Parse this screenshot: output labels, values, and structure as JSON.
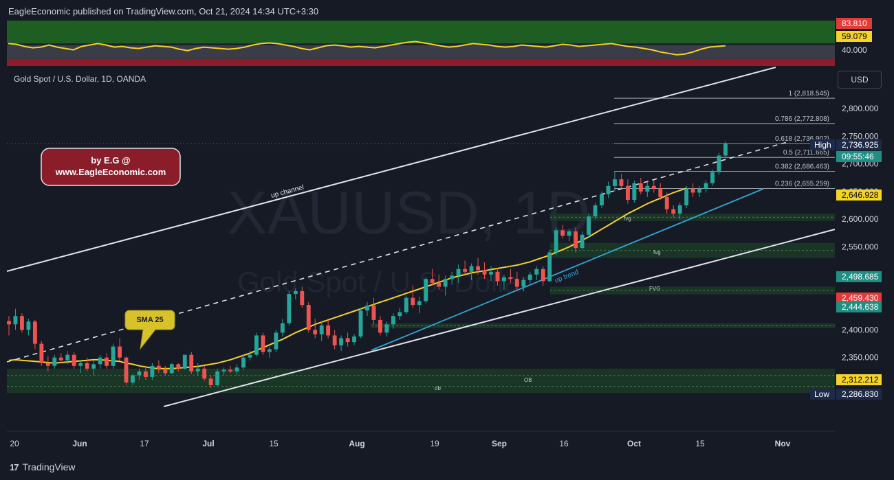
{
  "header": {
    "text": "EagleEconomic published on TradingView.com, Oct 21, 2024 14:34 UTC+3:30"
  },
  "symbol_title": "Gold Spot / U.S. Dollar, 1D, OANDA",
  "currency": "USD",
  "footer": {
    "brand": "TradingView"
  },
  "colors": {
    "background": "#161a25",
    "up": "#26a69a",
    "down": "#ef5350",
    "sma": "#f5d327",
    "trend": "#2ea8d6",
    "channel": "#e0e3eb"
  },
  "chart_data": [
    {
      "type": "line",
      "name": "oscillator-pane",
      "y_ticks": [
        "83.810",
        "59.079",
        "40.000"
      ],
      "levels": {
        "upper": 83.81,
        "current": 59.079,
        "lower": 40.0
      },
      "ylim": [
        30,
        95
      ],
      "values": [
        62,
        61,
        58,
        56,
        57,
        60,
        57,
        55,
        53,
        58,
        60,
        62,
        60,
        57,
        58,
        56,
        55,
        57,
        59,
        58,
        57,
        54,
        52,
        55,
        57,
        56,
        55,
        54,
        55,
        57,
        60,
        62,
        63,
        62,
        60,
        58,
        55,
        53,
        56,
        59,
        60,
        59,
        57,
        58,
        57,
        56,
        58,
        60,
        62,
        64,
        65,
        63,
        61,
        59,
        57,
        58,
        60,
        62,
        61,
        60,
        58,
        57,
        58,
        60,
        59,
        58,
        57,
        59,
        61,
        60,
        58,
        59,
        60,
        61,
        62,
        60,
        58,
        57,
        55,
        53,
        50,
        48,
        46,
        47,
        50,
        54,
        57,
        58,
        59
      ]
    },
    {
      "type": "candlestick",
      "title": "Gold Spot / U.S. Dollar, 1D, OANDA",
      "watermark": [
        "XAUUSD, 1D",
        "Gold Spot / U.S. Dollar"
      ],
      "y_ticks": [
        "2,800.000",
        "2,750.000",
        "2,700.000",
        "2,650.000",
        "2,600.000",
        "2,550.000",
        "2,400.000",
        "2,350.000"
      ],
      "x_ticks": [
        "20",
        "Jun",
        "17",
        "Jul",
        "15",
        "Aug",
        "19",
        "Sep",
        "16",
        "Oct",
        "15",
        "Nov"
      ],
      "ylim": [
        2250,
        2840
      ],
      "price_labels": [
        {
          "text": "2,736.925",
          "tag": "High",
          "value": 2736.925,
          "color": "#1e2a4a"
        },
        {
          "text": "09:55:46",
          "value": 2711,
          "color": "#1f8f84"
        },
        {
          "text": "2,646.928",
          "value": 2646.928,
          "color": "#f5d327"
        },
        {
          "text": "2,498.685",
          "value": 2498.685,
          "color": "#1f8f84"
        },
        {
          "text": "2,459.430",
          "value": 2459.43,
          "color": "#e53935"
        },
        {
          "text": "2,444.638",
          "value": 2444.638,
          "color": "#1f8f84"
        },
        {
          "text": "2,312.212",
          "value": 2312.212,
          "color": "#f5d327"
        },
        {
          "text": "2,286.830",
          "tag": "Low",
          "value": 2286.83,
          "color": "#1e2a4a"
        }
      ],
      "fib_levels": [
        {
          "label": "1 (2,818.545)",
          "value": 2818.545
        },
        {
          "label": "0.786 (2,772.808)",
          "value": 2772.808
        },
        {
          "label": "0.618 (2,736.902)",
          "value": 2736.902
        },
        {
          "label": "0.5 (2,711.665)",
          "value": 2711.665
        },
        {
          "label": "0.382 (2,686.463)",
          "value": 2686.463
        },
        {
          "label": "0.236 (2,655.259)",
          "value": 2655.259
        }
      ],
      "zones": [
        {
          "label": "fvg",
          "from": 2597,
          "to": 2610
        },
        {
          "label": "fvg",
          "from": 2530,
          "to": 2557
        },
        {
          "label": "FVG",
          "from": 2464,
          "to": 2478
        },
        {
          "label": "",
          "from": 2403,
          "to": 2412
        },
        {
          "label": "OB",
          "from": 2305,
          "to": 2330
        },
        {
          "label": "ob",
          "from": 2286,
          "to": 2310
        }
      ],
      "annotations": {
        "channel": "up channel",
        "trend": "up trend",
        "sma_callout": "SMA 25",
        "author_line1": "by E.G @",
        "author_line2": "www.EagleEconomic.com"
      },
      "candles": [
        [
          2416,
          2425,
          2390,
          2410
        ],
        [
          2410,
          2438,
          2400,
          2425
        ],
        [
          2425,
          2430,
          2395,
          2400
        ],
        [
          2400,
          2420,
          2390,
          2415
        ],
        [
          2415,
          2418,
          2365,
          2375
        ],
        [
          2375,
          2380,
          2335,
          2340
        ],
        [
          2340,
          2352,
          2325,
          2335
        ],
        [
          2335,
          2355,
          2330,
          2350
        ],
        [
          2350,
          2358,
          2340,
          2345
        ],
        [
          2345,
          2362,
          2338,
          2355
        ],
        [
          2355,
          2360,
          2330,
          2335
        ],
        [
          2335,
          2345,
          2322,
          2340
        ],
        [
          2340,
          2350,
          2325,
          2330
        ],
        [
          2330,
          2345,
          2318,
          2338
        ],
        [
          2338,
          2355,
          2330,
          2350
        ],
        [
          2350,
          2358,
          2330,
          2335
        ],
        [
          2335,
          2375,
          2330,
          2370
        ],
        [
          2370,
          2385,
          2345,
          2350
        ],
        [
          2350,
          2352,
          2300,
          2305
        ],
        [
          2305,
          2320,
          2300,
          2318
        ],
        [
          2318,
          2330,
          2310,
          2325
        ],
        [
          2325,
          2335,
          2310,
          2315
        ],
        [
          2315,
          2340,
          2310,
          2335
        ],
        [
          2335,
          2345,
          2322,
          2330
        ],
        [
          2330,
          2335,
          2318,
          2322
        ],
        [
          2322,
          2340,
          2320,
          2338
        ],
        [
          2338,
          2340,
          2325,
          2330
        ],
        [
          2330,
          2350,
          2328,
          2355
        ],
        [
          2355,
          2360,
          2320,
          2325
        ],
        [
          2325,
          2340,
          2318,
          2330
        ],
        [
          2330,
          2335,
          2308,
          2312
        ],
        [
          2312,
          2318,
          2295,
          2300
        ],
        [
          2300,
          2330,
          2298,
          2325
        ],
        [
          2325,
          2332,
          2318,
          2328
        ],
        [
          2328,
          2335,
          2322,
          2325
        ],
        [
          2325,
          2338,
          2318,
          2332
        ],
        [
          2332,
          2355,
          2328,
          2350
        ],
        [
          2350,
          2362,
          2345,
          2355
        ],
        [
          2355,
          2395,
          2352,
          2390
        ],
        [
          2390,
          2395,
          2355,
          2360
        ],
        [
          2360,
          2370,
          2350,
          2365
        ],
        [
          2365,
          2400,
          2360,
          2395
        ],
        [
          2395,
          2420,
          2388,
          2412
        ],
        [
          2412,
          2470,
          2408,
          2465
        ],
        [
          2465,
          2475,
          2455,
          2470
        ],
        [
          2470,
          2478,
          2440,
          2445
        ],
        [
          2445,
          2450,
          2395,
          2400
        ],
        [
          2400,
          2420,
          2385,
          2392
        ],
        [
          2392,
          2415,
          2380,
          2408
        ],
        [
          2408,
          2418,
          2385,
          2390
        ],
        [
          2390,
          2400,
          2365,
          2372
        ],
        [
          2372,
          2390,
          2362,
          2385
        ],
        [
          2385,
          2395,
          2370,
          2378
        ],
        [
          2378,
          2392,
          2372,
          2388
        ],
        [
          2388,
          2440,
          2385,
          2435
        ],
        [
          2435,
          2450,
          2425,
          2444
        ],
        [
          2444,
          2458,
          2410,
          2418
        ],
        [
          2418,
          2425,
          2390,
          2395
        ],
        [
          2395,
          2415,
          2388,
          2410
        ],
        [
          2410,
          2430,
          2402,
          2425
        ],
        [
          2425,
          2440,
          2418,
          2432
        ],
        [
          2432,
          2462,
          2428,
          2458
        ],
        [
          2458,
          2480,
          2440,
          2445
        ],
        [
          2445,
          2460,
          2430,
          2452
        ],
        [
          2452,
          2495,
          2448,
          2492
        ],
        [
          2492,
          2510,
          2480,
          2485
        ],
        [
          2485,
          2500,
          2472,
          2478
        ],
        [
          2478,
          2498,
          2462,
          2492
        ],
        [
          2492,
          2505,
          2482,
          2498
        ],
        [
          2498,
          2518,
          2485,
          2510
        ],
        [
          2510,
          2525,
          2498,
          2505
        ],
        [
          2505,
          2520,
          2490,
          2515
        ],
        [
          2515,
          2530,
          2500,
          2508
        ],
        [
          2508,
          2522,
          2492,
          2500
        ],
        [
          2500,
          2515,
          2488,
          2505
        ],
        [
          2505,
          2512,
          2480,
          2488
        ],
        [
          2488,
          2500,
          2472,
          2495
        ],
        [
          2495,
          2510,
          2485,
          2492
        ],
        [
          2492,
          2505,
          2470,
          2478
        ],
        [
          2478,
          2495,
          2470,
          2490
        ],
        [
          2490,
          2505,
          2484,
          2500
        ],
        [
          2500,
          2515,
          2490,
          2510
        ],
        [
          2510,
          2515,
          2480,
          2488
        ],
        [
          2488,
          2545,
          2486,
          2540
        ],
        [
          2540,
          2585,
          2535,
          2580
        ],
        [
          2580,
          2590,
          2565,
          2570
        ],
        [
          2570,
          2582,
          2560,
          2578
        ],
        [
          2578,
          2585,
          2540,
          2548
        ],
        [
          2548,
          2578,
          2545,
          2572
        ],
        [
          2572,
          2610,
          2568,
          2605
        ],
        [
          2605,
          2630,
          2600,
          2625
        ],
        [
          2625,
          2650,
          2620,
          2645
        ],
        [
          2645,
          2668,
          2638,
          2660
        ],
        [
          2660,
          2685,
          2650,
          2672
        ],
        [
          2672,
          2682,
          2655,
          2660
        ],
        [
          2660,
          2672,
          2628,
          2635
        ],
        [
          2635,
          2670,
          2630,
          2665
        ],
        [
          2665,
          2675,
          2645,
          2650
        ],
        [
          2650,
          2668,
          2640,
          2660
        ],
        [
          2660,
          2670,
          2648,
          2655
        ],
        [
          2655,
          2665,
          2635,
          2640
        ],
        [
          2640,
          2648,
          2610,
          2618
        ],
        [
          2618,
          2625,
          2603,
          2610
        ],
        [
          2610,
          2630,
          2600,
          2625
        ],
        [
          2625,
          2660,
          2620,
          2655
        ],
        [
          2655,
          2665,
          2640,
          2648
        ],
        [
          2648,
          2660,
          2640,
          2655
        ],
        [
          2655,
          2670,
          2648,
          2665
        ],
        [
          2665,
          2690,
          2660,
          2685
        ],
        [
          2685,
          2720,
          2680,
          2715
        ],
        [
          2715,
          2740,
          2710,
          2737
        ]
      ],
      "sma25": [
        2345,
        2346,
        2345,
        2344,
        2343,
        2342,
        2341,
        2340,
        2341,
        2342,
        2343,
        2344,
        2345,
        2346,
        2346,
        2345,
        2344,
        2343,
        2340,
        2338,
        2335,
        2333,
        2331,
        2330,
        2330,
        2330,
        2331,
        2332,
        2333,
        2334,
        2336,
        2338,
        2340,
        2343,
        2346,
        2350,
        2354,
        2358,
        2363,
        2368,
        2373,
        2378,
        2383,
        2389,
        2395,
        2400,
        2405,
        2410,
        2414,
        2418,
        2422,
        2426,
        2430,
        2434,
        2438,
        2442,
        2446,
        2450,
        2454,
        2458,
        2462,
        2466,
        2470,
        2474,
        2478,
        2482,
        2486,
        2490,
        2494,
        2497,
        2500,
        2503,
        2505,
        2507,
        2509,
        2511,
        2513,
        2515,
        2517,
        2520,
        2523,
        2527,
        2531,
        2535,
        2540,
        2545,
        2550,
        2556,
        2562,
        2568,
        2575,
        2582,
        2589,
        2596,
        2603,
        2610,
        2616,
        2622,
        2628,
        2633,
        2638,
        2643,
        2648,
        2652,
        2656
      ]
    }
  ]
}
